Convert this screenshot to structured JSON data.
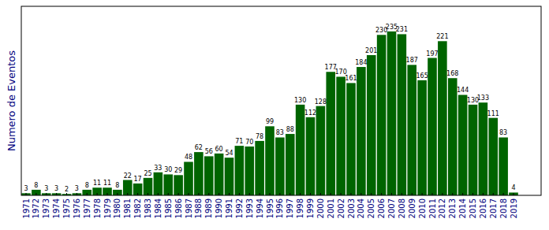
{
  "chart_data": {
    "type": "bar",
    "y_label": "Numero de Eventos",
    "categories": [
      "1971",
      "1972",
      "1973",
      "1974",
      "1975",
      "1976",
      "1977",
      "1978",
      "1979",
      "1980",
      "1981",
      "1982",
      "1983",
      "1984",
      "1985",
      "1986",
      "1987",
      "1988",
      "1989",
      "1990",
      "1991",
      "1992",
      "1993",
      "1994",
      "1995",
      "1996",
      "1997",
      "1998",
      "1999",
      "2000",
      "2001",
      "2002",
      "2003",
      "2004",
      "2005",
      "2006",
      "2007",
      "2008",
      "2009",
      "2010",
      "2011",
      "2012",
      "2013",
      "2014",
      "2015",
      "2016",
      "2017",
      "2018",
      "2019"
    ],
    "values": [
      3,
      8,
      3,
      3,
      2,
      3,
      8,
      11,
      11,
      8,
      22,
      17,
      25,
      33,
      30,
      29,
      48,
      62,
      56,
      60,
      54,
      71,
      70,
      78,
      99,
      83,
      88,
      130,
      112,
      128,
      177,
      170,
      161,
      184,
      201,
      230,
      235,
      231,
      187,
      165,
      197,
      221,
      168,
      144,
      130,
      133,
      111,
      83,
      4
    ],
    "color": "#006400",
    "ylim": [
      0,
      271
    ],
    "data_labels": true,
    "tick_labels": "x",
    "grid": false
  }
}
